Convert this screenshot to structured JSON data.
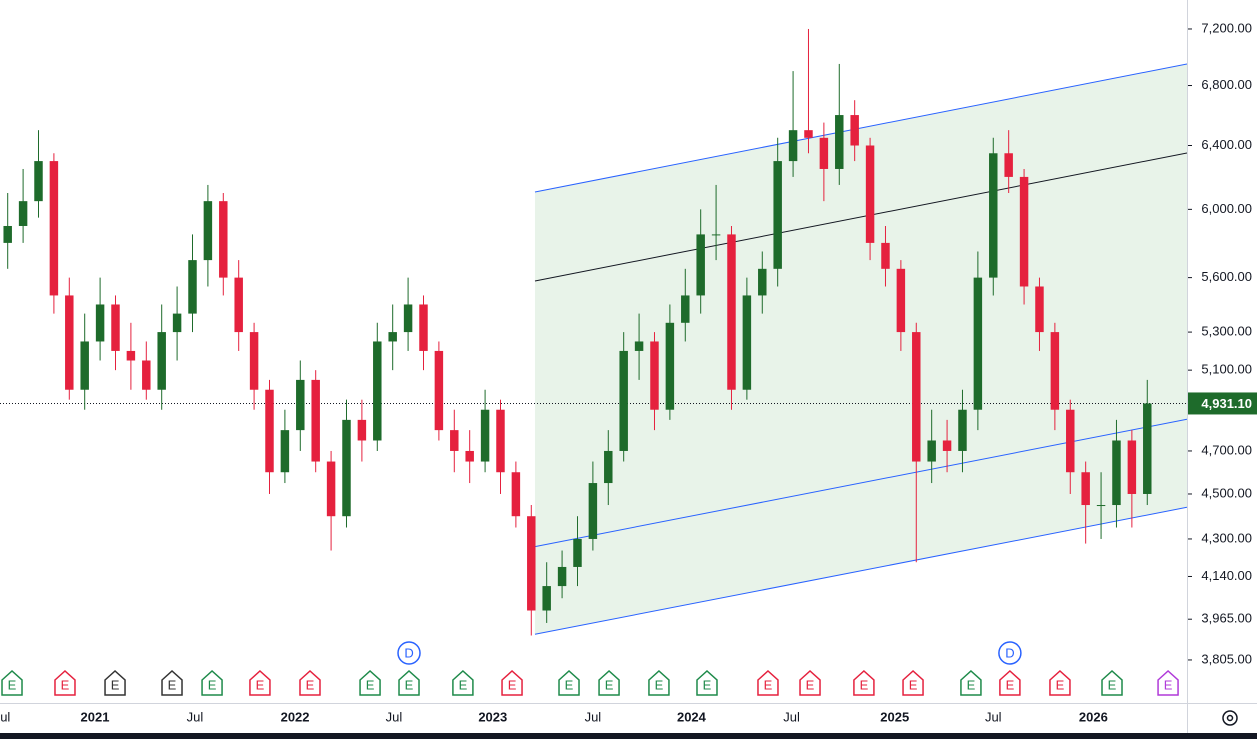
{
  "chart_data": {
    "type": "candlestick",
    "log_scale": true,
    "xlim": [
      -0.5,
      76.58
    ],
    "ylim": [
      3643,
      7414
    ],
    "xticks": [
      {
        "value": -0.37,
        "label": "Jul"
      },
      {
        "value": 5.67,
        "label": "2021"
      },
      {
        "value": 12.16,
        "label": "Jul"
      },
      {
        "value": 18.66,
        "label": "2022"
      },
      {
        "value": 25.08,
        "label": "Jul"
      },
      {
        "value": 31.5,
        "label": "2023"
      },
      {
        "value": 38.0,
        "label": "Jul"
      },
      {
        "value": 44.4,
        "label": "2024"
      },
      {
        "value": 50.9,
        "label": "Jul"
      },
      {
        "value": 57.6,
        "label": "2025"
      },
      {
        "value": 64.0,
        "label": "Jul"
      },
      {
        "value": 70.5,
        "label": "2026"
      }
    ],
    "yticks": [
      {
        "value": 7200,
        "label": "7,200.00"
      },
      {
        "value": 6800,
        "label": "6,800.00"
      },
      {
        "value": 6400,
        "label": "6,400.00"
      },
      {
        "value": 6000,
        "label": "6,000.00"
      },
      {
        "value": 5600,
        "label": "5,600.00"
      },
      {
        "value": 5300,
        "label": "5,300.00"
      },
      {
        "value": 5100,
        "label": "5,100.00"
      },
      {
        "value": 4700,
        "label": "4,700.00"
      },
      {
        "value": 4500,
        "label": "4,500.00"
      },
      {
        "value": 4300,
        "label": "4,300.00"
      },
      {
        "value": 4140,
        "label": "4,140.00"
      },
      {
        "value": 3965,
        "label": "3,965.00"
      },
      {
        "value": 3805,
        "label": "3,805.00"
      }
    ],
    "up_color": "#1e6b2b",
    "down_color": "#e5213e",
    "open": [
      5800,
      5900,
      6050,
      6300,
      5500,
      5000,
      5250,
      5450,
      5200,
      5150,
      5000,
      5300,
      5400,
      5700,
      6050,
      5600,
      5300,
      5000,
      4600,
      4800,
      5050,
      4650,
      4400,
      4850,
      4750,
      5250,
      5300,
      5450,
      5200,
      4800,
      4700,
      4650,
      4900,
      4600,
      4400,
      4000,
      4100,
      4180,
      4300,
      4550,
      4700,
      5200,
      5250,
      4900,
      5350,
      5500,
      5850,
      5850,
      5000,
      5500,
      5650,
      6300,
      6500,
      6450,
      6250,
      6600,
      6400,
      5800,
      5650,
      5300,
      4650,
      4750,
      4700,
      4900,
      5600,
      6350,
      6200,
      5550,
      5300,
      4900,
      4600,
      4450,
      4450,
      4750,
      4500
    ],
    "high": [
      6100,
      6250,
      6500,
      6350,
      5600,
      5400,
      5600,
      5500,
      5350,
      5250,
      5450,
      5550,
      5850,
      6150,
      6100,
      5700,
      5350,
      5050,
      4900,
      5150,
      5100,
      4700,
      4950,
      4950,
      5350,
      5450,
      5600,
      5500,
      5250,
      4900,
      4800,
      5000,
      4950,
      4650,
      4450,
      4200,
      4250,
      4400,
      4650,
      4800,
      5300,
      5400,
      5300,
      5450,
      5650,
      6000,
      6150,
      5900,
      5600,
      5750,
      6450,
      6900,
      7200,
      6550,
      6950,
      6700,
      6450,
      5900,
      5700,
      5350,
      4900,
      4850,
      5000,
      5750,
      6450,
      6500,
      6250,
      5600,
      5350,
      4950,
      4650,
      4600,
      4850,
      4800,
      5050
    ],
    "low": [
      5650,
      5800,
      5950,
      5400,
      4950,
      4900,
      5150,
      5100,
      5000,
      4950,
      4900,
      5150,
      5300,
      5550,
      5500,
      5200,
      4900,
      4500,
      4550,
      4700,
      4600,
      4250,
      4350,
      4650,
      4700,
      5100,
      5200,
      5100,
      4750,
      4600,
      4550,
      4600,
      4500,
      4350,
      3900,
      3950,
      4050,
      4100,
      4250,
      4450,
      4650,
      5050,
      4800,
      4850,
      5250,
      5400,
      5700,
      4900,
      4950,
      5400,
      5550,
      6200,
      6350,
      6050,
      6150,
      6300,
      5700,
      5550,
      5200,
      4200,
      4550,
      4600,
      4600,
      4800,
      5500,
      6100,
      5450,
      5200,
      4800,
      4500,
      4280,
      4300,
      4350,
      4350,
      4450
    ],
    "close": [
      5900,
      6050,
      6300,
      5500,
      5000,
      5250,
      5450,
      5200,
      5150,
      5000,
      5300,
      5400,
      5700,
      6050,
      5600,
      5300,
      5000,
      4600,
      4800,
      5050,
      4650,
      4400,
      4850,
      4750,
      5250,
      5300,
      5450,
      5200,
      4800,
      4700,
      4650,
      4900,
      4600,
      4400,
      4000,
      4100,
      4180,
      4300,
      4550,
      4700,
      5200,
      5250,
      4900,
      5350,
      5500,
      5850,
      5850,
      5000,
      5500,
      5650,
      6300,
      6500,
      6450,
      6250,
      6600,
      6400,
      5800,
      5650,
      5300,
      4650,
      4750,
      4700,
      4900,
      5600,
      6350,
      6200,
      5550,
      5300,
      4900,
      4600,
      4450,
      4450,
      4750,
      4500,
      4931.1
    ],
    "last_price": {
      "value": 4931.1,
      "label": "4,931.10",
      "color": "#1e6b2b"
    },
    "channel": {
      "x": [
        34.24,
        76.58
      ],
      "fill": "#e8f3e9",
      "lines": [
        {
          "name": "upper",
          "color": "#2962ff",
          "values": [
            6106,
            6950
          ]
        },
        {
          "name": "middle",
          "color": "#131722",
          "values": [
            5581,
            6352
          ]
        },
        {
          "name": "inner",
          "color": "#2962ff",
          "values": [
            4267,
            4853
          ]
        },
        {
          "name": "lower",
          "color": "#2962ff",
          "values": [
            3905,
            4440
          ]
        }
      ]
    },
    "events": [
      {
        "label": "E",
        "x": 0.28,
        "color": "#1e8a4a"
      },
      {
        "label": "E",
        "x": 3.72,
        "color": "#e5213e"
      },
      {
        "label": "E",
        "x": 6.97,
        "color": "#333333"
      },
      {
        "label": "E",
        "x": 10.67,
        "color": "#333333"
      },
      {
        "label": "E",
        "x": 13.27,
        "color": "#1e8a4a"
      },
      {
        "label": "E",
        "x": 16.38,
        "color": "#e5213e"
      },
      {
        "label": "E",
        "x": 19.63,
        "color": "#e5213e"
      },
      {
        "label": "E",
        "x": 23.53,
        "color": "#1e8a4a"
      },
      {
        "label": "E",
        "x": 26.06,
        "color": "#1e8a4a"
      },
      {
        "label": "E",
        "x": 29.56,
        "color": "#1e8a4a"
      },
      {
        "label": "E",
        "x": 32.75,
        "color": "#e5213e"
      },
      {
        "label": "E",
        "x": 36.45,
        "color": "#1e8a4a"
      },
      {
        "label": "E",
        "x": 39.05,
        "color": "#1e8a4a"
      },
      {
        "label": "E",
        "x": 42.29,
        "color": "#1e8a4a"
      },
      {
        "label": "E",
        "x": 45.41,
        "color": "#1e8a4a"
      },
      {
        "label": "E",
        "x": 49.37,
        "color": "#e5213e"
      },
      {
        "label": "E",
        "x": 52.1,
        "color": "#e5213e"
      },
      {
        "label": "E",
        "x": 55.6,
        "color": "#e5213e"
      },
      {
        "label": "E",
        "x": 58.79,
        "color": "#e5213e"
      },
      {
        "label": "E",
        "x": 62.55,
        "color": "#1e8a4a"
      },
      {
        "label": "E",
        "x": 65.08,
        "color": "#e5213e"
      },
      {
        "label": "E",
        "x": 68.33,
        "color": "#e5213e"
      },
      {
        "label": "E",
        "x": 71.71,
        "color": "#1e8a4a"
      },
      {
        "label": "E",
        "x": 75.35,
        "color": "#b03ad9"
      }
    ],
    "dividends": [
      {
        "label": "D",
        "x": 26.06,
        "color": "#2962ff"
      },
      {
        "label": "D",
        "x": 65.08,
        "color": "#2962ff"
      }
    ]
  }
}
